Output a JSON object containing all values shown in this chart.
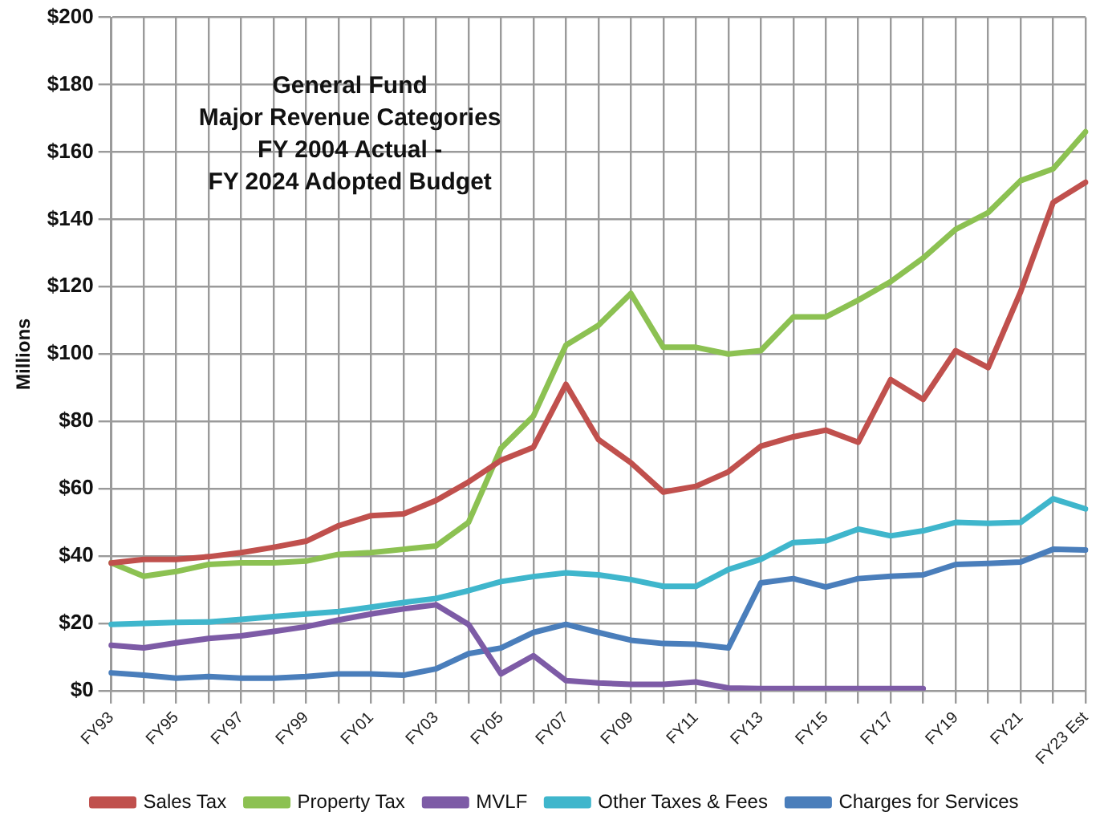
{
  "chart_data": {
    "type": "line",
    "title": "General Fund\nMajor Revenue Categories\nFY 2004 Actual -\nFY 2024 Adopted Budget",
    "ylabel": "Millions",
    "categories": [
      "FY93",
      null,
      "FY95",
      null,
      "FY97",
      null,
      "FY99",
      null,
      "FY01",
      null,
      "FY03",
      null,
      "FY05",
      null,
      "FY07",
      null,
      "FY09",
      null,
      "FY11",
      null,
      "FY13",
      null,
      "FY15",
      null,
      "FY17",
      null,
      "FY19",
      null,
      "FY21",
      null,
      "FY23 Est"
    ],
    "series": [
      {
        "name": "Sales Tax",
        "color": "#c0504d",
        "values": [
          37.9,
          39,
          39,
          39.8,
          41,
          42.6,
          44.4,
          49,
          52,
          52.5,
          56.5,
          62,
          68.4,
          72.3,
          91,
          74.6,
          67.7,
          59,
          60.7,
          65,
          72.6,
          75.4,
          77.4,
          73.8,
          92.4,
          86.5,
          101,
          96,
          118.5,
          145,
          151
        ]
      },
      {
        "name": "Property Tax",
        "color": "#8cc152",
        "values": [
          38,
          34,
          35.4,
          37.5,
          38,
          38,
          38.5,
          40.5,
          41,
          42,
          43,
          50,
          72,
          81.6,
          102.6,
          108.5,
          118,
          102,
          102,
          100,
          101,
          111,
          111,
          116,
          121.5,
          128.5,
          137,
          142,
          151.5,
          155,
          166
        ]
      },
      {
        "name": "MVLF",
        "color": "#7d5ba6",
        "values": [
          13.5,
          12.7,
          14.2,
          15.5,
          16.3,
          17.6,
          19,
          21,
          22.8,
          24.3,
          25.5,
          19.7,
          5,
          10.4,
          3,
          2.3,
          1.9,
          1.9,
          2.6,
          0.8,
          0.6,
          0.6,
          0.6,
          0.6,
          0.6,
          0.6,
          null,
          null,
          null,
          null,
          null
        ]
      },
      {
        "name": "Other Taxes & Fees",
        "color": "#3fb6cc",
        "values": [
          19.7,
          20,
          20.3,
          20.4,
          21.2,
          22,
          22.8,
          23.5,
          24.8,
          26.2,
          27.4,
          29.7,
          32.4,
          33.9,
          35,
          34.4,
          33,
          31,
          31,
          36,
          39,
          44,
          44.5,
          48,
          46,
          47.5,
          50,
          49.7,
          50,
          57,
          54
        ]
      },
      {
        "name": "Charges for Services",
        "color": "#4a7ebb",
        "values": [
          5.3,
          4.6,
          3.7,
          4.2,
          3.7,
          3.7,
          4.2,
          5,
          5,
          4.6,
          6.5,
          11,
          12.7,
          17.3,
          19.7,
          17.3,
          15,
          14,
          13.8,
          12.7,
          32,
          33.3,
          30.8,
          33.3,
          34,
          34.4,
          37.5,
          37.8,
          38.2,
          42,
          41.8
        ]
      }
    ],
    "ylim": [
      0,
      200
    ],
    "yticks": [
      {
        "value": 0,
        "label": "$0"
      },
      {
        "value": 20,
        "label": "$20"
      },
      {
        "value": 40,
        "label": "$40"
      },
      {
        "value": 60,
        "label": "$60"
      },
      {
        "value": 80,
        "label": "$80"
      },
      {
        "value": 100,
        "label": "$100"
      },
      {
        "value": 120,
        "label": "$120"
      },
      {
        "value": 140,
        "label": "$140"
      },
      {
        "value": 160,
        "label": "$160"
      },
      {
        "value": 180,
        "label": "$180"
      },
      {
        "value": 200,
        "label": "$200"
      }
    ],
    "grid": true,
    "legend": "bottom",
    "marker": "none",
    "line_style": "solid"
  }
}
